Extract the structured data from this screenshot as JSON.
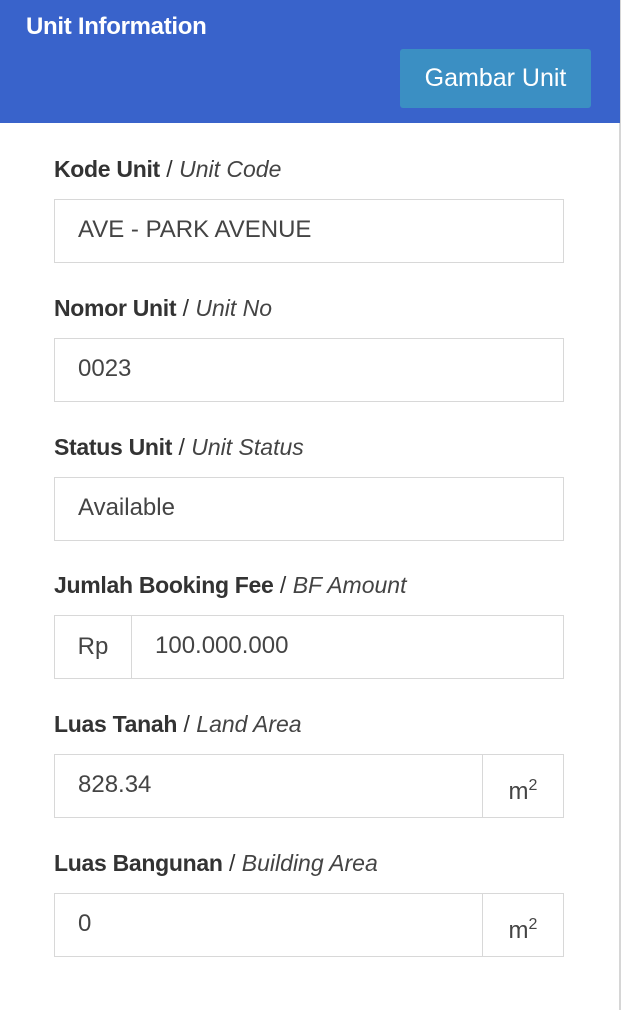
{
  "header": {
    "title": "Unit Information",
    "button_label": "Gambar Unit"
  },
  "fields": [
    {
      "label_id": "Kode Unit",
      "label_en": "Unit Code",
      "value": "AVE - PARK AVENUE"
    },
    {
      "label_id": "Nomor Unit",
      "label_en": "Unit No",
      "value": "0023"
    },
    {
      "label_id": "Status Unit",
      "label_en": "Unit Status",
      "value": "Available"
    },
    {
      "label_id": "Jumlah Booking Fee",
      "label_en": "BF Amount",
      "value": "100.000.000",
      "prefix": "Rp"
    },
    {
      "label_id": "Luas Tanah",
      "label_en": "Land Area",
      "value": "828.34",
      "suffix": "m",
      "suffix_sup": "2"
    },
    {
      "label_id": "Luas Bangunan",
      "label_en": "Building Area",
      "value": "0",
      "suffix": "m",
      "suffix_sup": "2"
    }
  ],
  "colors": {
    "header": "#3963cb",
    "button": "#3b8fc3"
  }
}
